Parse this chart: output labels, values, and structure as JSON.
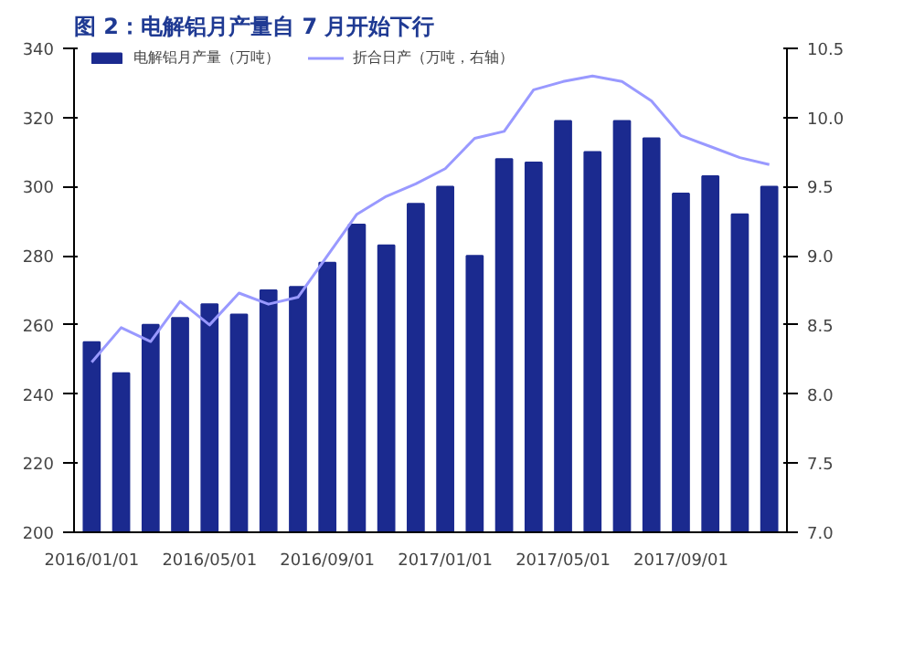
{
  "chart_data": {
    "type": "bar",
    "title": "图 2：电解铝月产量自 7 月开始下行",
    "categories": [
      "2016/01/01",
      null,
      null,
      null,
      "2016/05/01",
      null,
      null,
      null,
      "2016/09/01",
      null,
      null,
      null,
      "2017/01/01",
      null,
      null,
      null,
      "2017/05/01",
      null,
      null,
      null,
      "2017/09/01",
      null,
      null,
      null
    ],
    "series": [
      {
        "name": "电解铝月产量（万吨）",
        "color": "#1b2a8f",
        "values": [
          255,
          246,
          260,
          262,
          266,
          263,
          270,
          271,
          278,
          289,
          283,
          295,
          300,
          280,
          308,
          307,
          319,
          310,
          319,
          314,
          298,
          303,
          292,
          300
        ]
      },
      {
        "name": "折合日产（万吨，右轴）",
        "type": "line",
        "axis": "y2",
        "color": "#9999ff",
        "values": [
          8.23,
          8.48,
          8.38,
          8.67,
          8.5,
          8.73,
          8.65,
          8.7,
          9.0,
          9.3,
          9.43,
          9.52,
          9.63,
          9.85,
          9.9,
          10.2,
          10.26,
          10.3,
          10.26,
          10.12,
          9.87,
          9.79,
          9.71,
          9.66
        ]
      }
    ],
    "ylim": [
      200,
      340
    ],
    "yticks": [
      200,
      220,
      240,
      260,
      280,
      300,
      320,
      340
    ],
    "y2lim": [
      7.0,
      10.5
    ],
    "y2ticks": [
      {
        "value": 7.0,
        "label": "7.0"
      },
      {
        "value": 7.5,
        "label": "7.5"
      },
      {
        "value": 8.0,
        "label": "8.0"
      },
      {
        "value": 8.5,
        "label": "8.5"
      },
      {
        "value": 9.0,
        "label": "9.0"
      },
      {
        "value": 9.5,
        "label": "9.5"
      },
      {
        "value": 10.0,
        "label": "10.0"
      },
      {
        "value": 10.5,
        "label": "10.5"
      }
    ],
    "grid": false,
    "legend": "top"
  }
}
